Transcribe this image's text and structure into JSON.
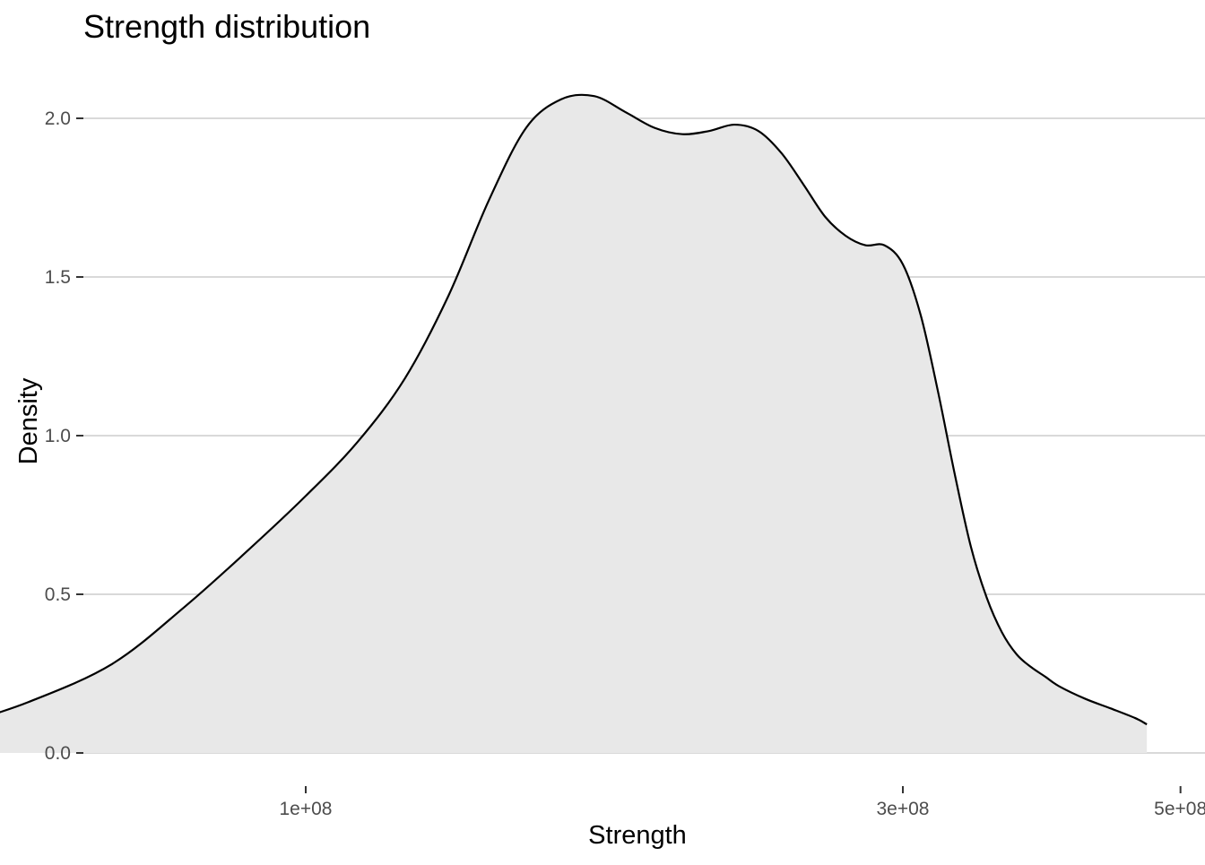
{
  "chart_data": {
    "type": "area",
    "title": "Strength distribution",
    "xlabel": "Strength",
    "ylabel": "Density",
    "x_scale": "log10",
    "xlim": [
      48000000,
      500000000
    ],
    "ylim": [
      0,
      2.1
    ],
    "x_ticks": [
      {
        "value": 100000000,
        "label": "1e+08"
      },
      {
        "value": 300000000,
        "label": "3e+08"
      },
      {
        "value": 500000000,
        "label": "5e+08"
      }
    ],
    "y_ticks": [
      {
        "value": 0,
        "label": "0.0"
      },
      {
        "value": 0.5,
        "label": "0.5"
      },
      {
        "value": 1.0,
        "label": "1.0"
      },
      {
        "value": 1.5,
        "label": "1.5"
      },
      {
        "value": 2.0,
        "label": "2.0"
      }
    ],
    "grid": {
      "major_y": true,
      "major_x": false
    },
    "series": [
      {
        "x": [
          53000000,
          60000000,
          70000000,
          80000000,
          90000000,
          100000000,
          110000000,
          120000000,
          130000000,
          140000000,
          150000000,
          160000000,
          170000000,
          180000000,
          190000000,
          200000000,
          210000000,
          220000000,
          230000000,
          240000000,
          250000000,
          260000000,
          270000000,
          280000000,
          290000000,
          300000000,
          310000000,
          320000000,
          330000000,
          340000000,
          350000000,
          360000000,
          370000000,
          380000000,
          390000000,
          400000000,
          420000000,
          440000000,
          460000000,
          470000000
        ],
        "y": [
          0.09,
          0.16,
          0.28,
          0.46,
          0.64,
          0.81,
          0.98,
          1.18,
          1.44,
          1.74,
          1.97,
          2.06,
          2.07,
          2.02,
          1.97,
          1.95,
          1.96,
          1.98,
          1.96,
          1.89,
          1.79,
          1.69,
          1.63,
          1.6,
          1.6,
          1.54,
          1.38,
          1.14,
          0.88,
          0.65,
          0.49,
          0.38,
          0.31,
          0.27,
          0.24,
          0.21,
          0.17,
          0.14,
          0.11,
          0.09
        ],
        "fill": "#e8e8e8",
        "line": "#000000"
      }
    ],
    "colors": {
      "background": "#ffffff",
      "gridline": "#d9d9d9",
      "tick_label": "#4d4d4d",
      "tick_mark": "#333333"
    }
  }
}
